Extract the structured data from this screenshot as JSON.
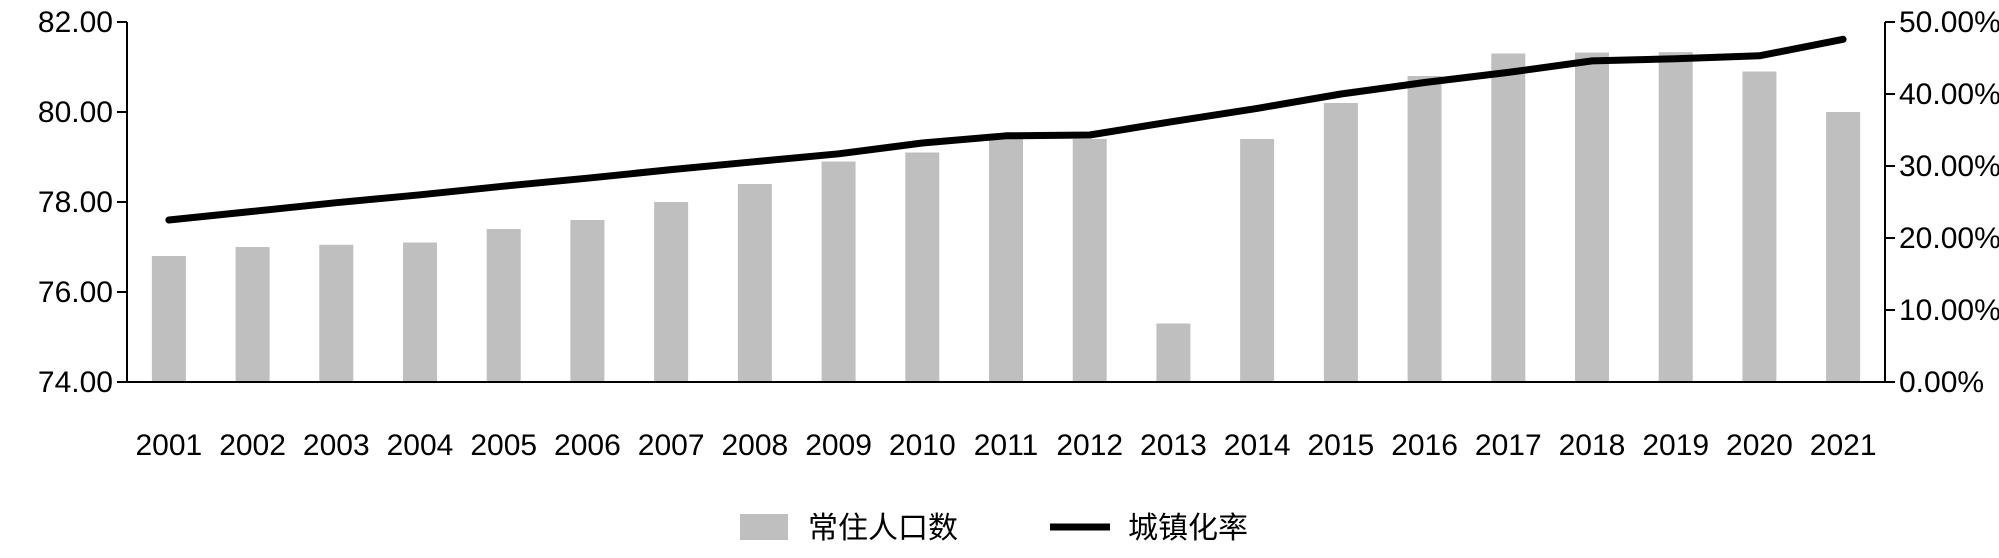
{
  "chart_data": {
    "type": "bar",
    "categories": [
      "2001",
      "2002",
      "2003",
      "2004",
      "2005",
      "2006",
      "2007",
      "2008",
      "2009",
      "2010",
      "2011",
      "2012",
      "2013",
      "2014",
      "2015",
      "2016",
      "2017",
      "2018",
      "2019",
      "2020",
      "2021"
    ],
    "series": [
      {
        "name": "常住人口数",
        "type": "bar",
        "axis": "left",
        "color": "#bfbfbf",
        "values": [
          76.8,
          77.0,
          77.05,
          77.1,
          77.4,
          77.6,
          78.0,
          78.4,
          78.9,
          79.1,
          79.4,
          79.4,
          75.3,
          79.4,
          80.2,
          80.8,
          81.3,
          81.32,
          81.33,
          80.9,
          80.0
        ]
      },
      {
        "name": "城镇化率",
        "type": "line",
        "axis": "right",
        "color": "#000000",
        "values": [
          22.5,
          23.7,
          24.9,
          26.0,
          27.2,
          28.3,
          29.5,
          30.6,
          31.7,
          33.2,
          34.2,
          34.3,
          36.2,
          38.0,
          40.0,
          41.6,
          43.0,
          44.6,
          44.9,
          45.3,
          47.6
        ]
      }
    ],
    "y_left": {
      "min": 74,
      "max": 82,
      "ticks": [
        "74.00",
        "76.00",
        "78.00",
        "80.00",
        "82.00"
      ]
    },
    "y_right": {
      "min": 0,
      "max": 50,
      "ticks": [
        "0.00%",
        "10.00%",
        "20.00%",
        "30.00%",
        "40.00%",
        "50.00%"
      ]
    },
    "grid": false,
    "legend_position": "bottom"
  }
}
